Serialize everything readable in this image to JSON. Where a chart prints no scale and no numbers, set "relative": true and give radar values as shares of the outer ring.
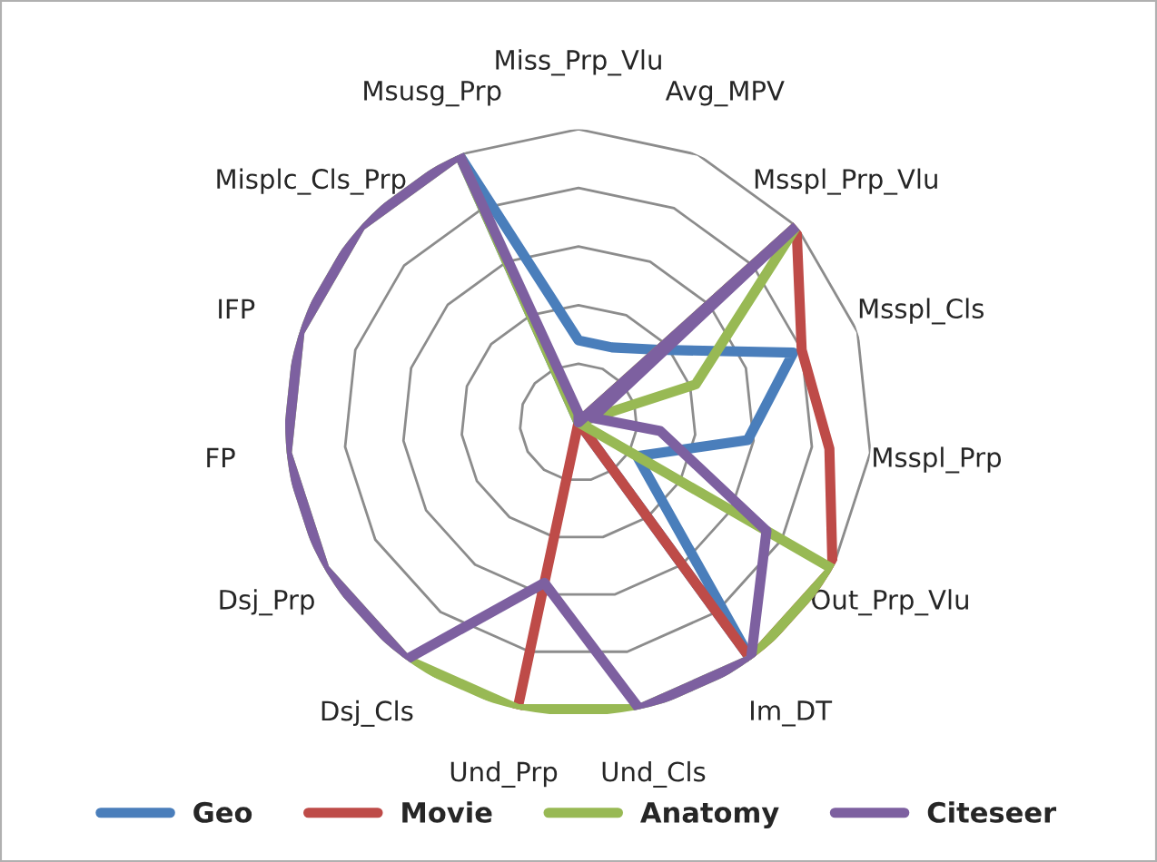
{
  "chart_data": {
    "type": "radar",
    "relative": true,
    "grid": true,
    "legend": "bottom",
    "marker": "none",
    "line_style": "solid",
    "categories": [
      "Miss_Prp_Vlu",
      "Avg_MPV",
      "Msspl_Prp_Vlu",
      "Msspl_Cls",
      "Msspl_Prp",
      "Out_Prp_Vlu",
      "Im_DT",
      "Und_Cls",
      "Und_Prp",
      "Dsj_Cls",
      "Dsj_Prp",
      "FP",
      "IFP",
      "Misplc_Cls_Prp",
      "Msusg_Prp"
    ],
    "series": [
      {
        "name": "Geo",
        "color": "#4a7ebb",
        "values": [
          0.28,
          0.28,
          0.37,
          0.77,
          0.58,
          0.23,
          1,
          0,
          0,
          0,
          0,
          0,
          0,
          0,
          1
        ]
      },
      {
        "name": "Movie",
        "color": "#be4b48",
        "values": [
          0,
          0,
          1,
          0.8,
          0.86,
          1,
          1,
          0,
          1,
          0,
          0,
          0,
          0,
          0,
          0
        ]
      },
      {
        "name": "Anatomy",
        "color": "#98b954",
        "values": [
          0,
          0,
          1,
          0.42,
          0,
          1,
          1,
          1,
          1,
          1,
          1,
          1,
          1,
          1,
          1
        ]
      },
      {
        "name": "Citeseer",
        "color": "#7d60a0",
        "values": [
          0.03,
          0,
          1,
          0.05,
          0.28,
          0.74,
          1,
          1,
          0.56,
          1,
          1,
          1,
          1,
          1,
          1
        ]
      }
    ]
  }
}
